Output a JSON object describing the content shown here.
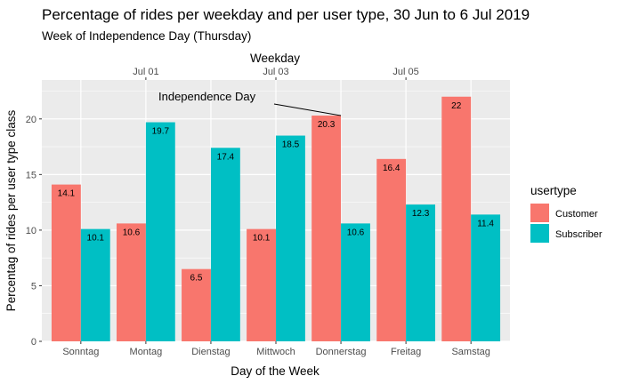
{
  "chart_data": {
    "type": "bar",
    "title": "Percentage of rides per weekday and per user type, 30 Jun to 6 Jul 2019",
    "subtitle": "Week of Independence Day (Thursday)",
    "xlabel": "Day of the Week",
    "ylabel": "Percentag of rides per user type class",
    "top_axis_title": "Weekday",
    "top_axis_ticks": [
      {
        "label": "Jul 01",
        "category": "Montag"
      },
      {
        "label": "Jul 03",
        "category": "Mittwoch"
      },
      {
        "label": "Jul 05",
        "category": "Freitag"
      }
    ],
    "categories": [
      "Sonntag",
      "Montag",
      "Dienstag",
      "Mittwoch",
      "Donnerstag",
      "Freitag",
      "Samstag"
    ],
    "series": [
      {
        "name": "Customer",
        "color": "#F8766D",
        "values": [
          14.1,
          10.6,
          6.5,
          10.1,
          20.3,
          16.4,
          22
        ]
      },
      {
        "name": "Subscriber",
        "color": "#00BFC4",
        "values": [
          10.1,
          19.7,
          17.4,
          18.5,
          10.6,
          12.3,
          11.4
        ]
      }
    ],
    "ylim": [
      0,
      23.5
    ],
    "yticks": [
      0,
      5,
      10,
      15,
      20
    ],
    "legend_title": "usertype",
    "legend_position": "right",
    "grid": true,
    "annotation": {
      "text": "Independence Day",
      "target_category": "Donnerstag",
      "target_series": "Customer"
    }
  }
}
